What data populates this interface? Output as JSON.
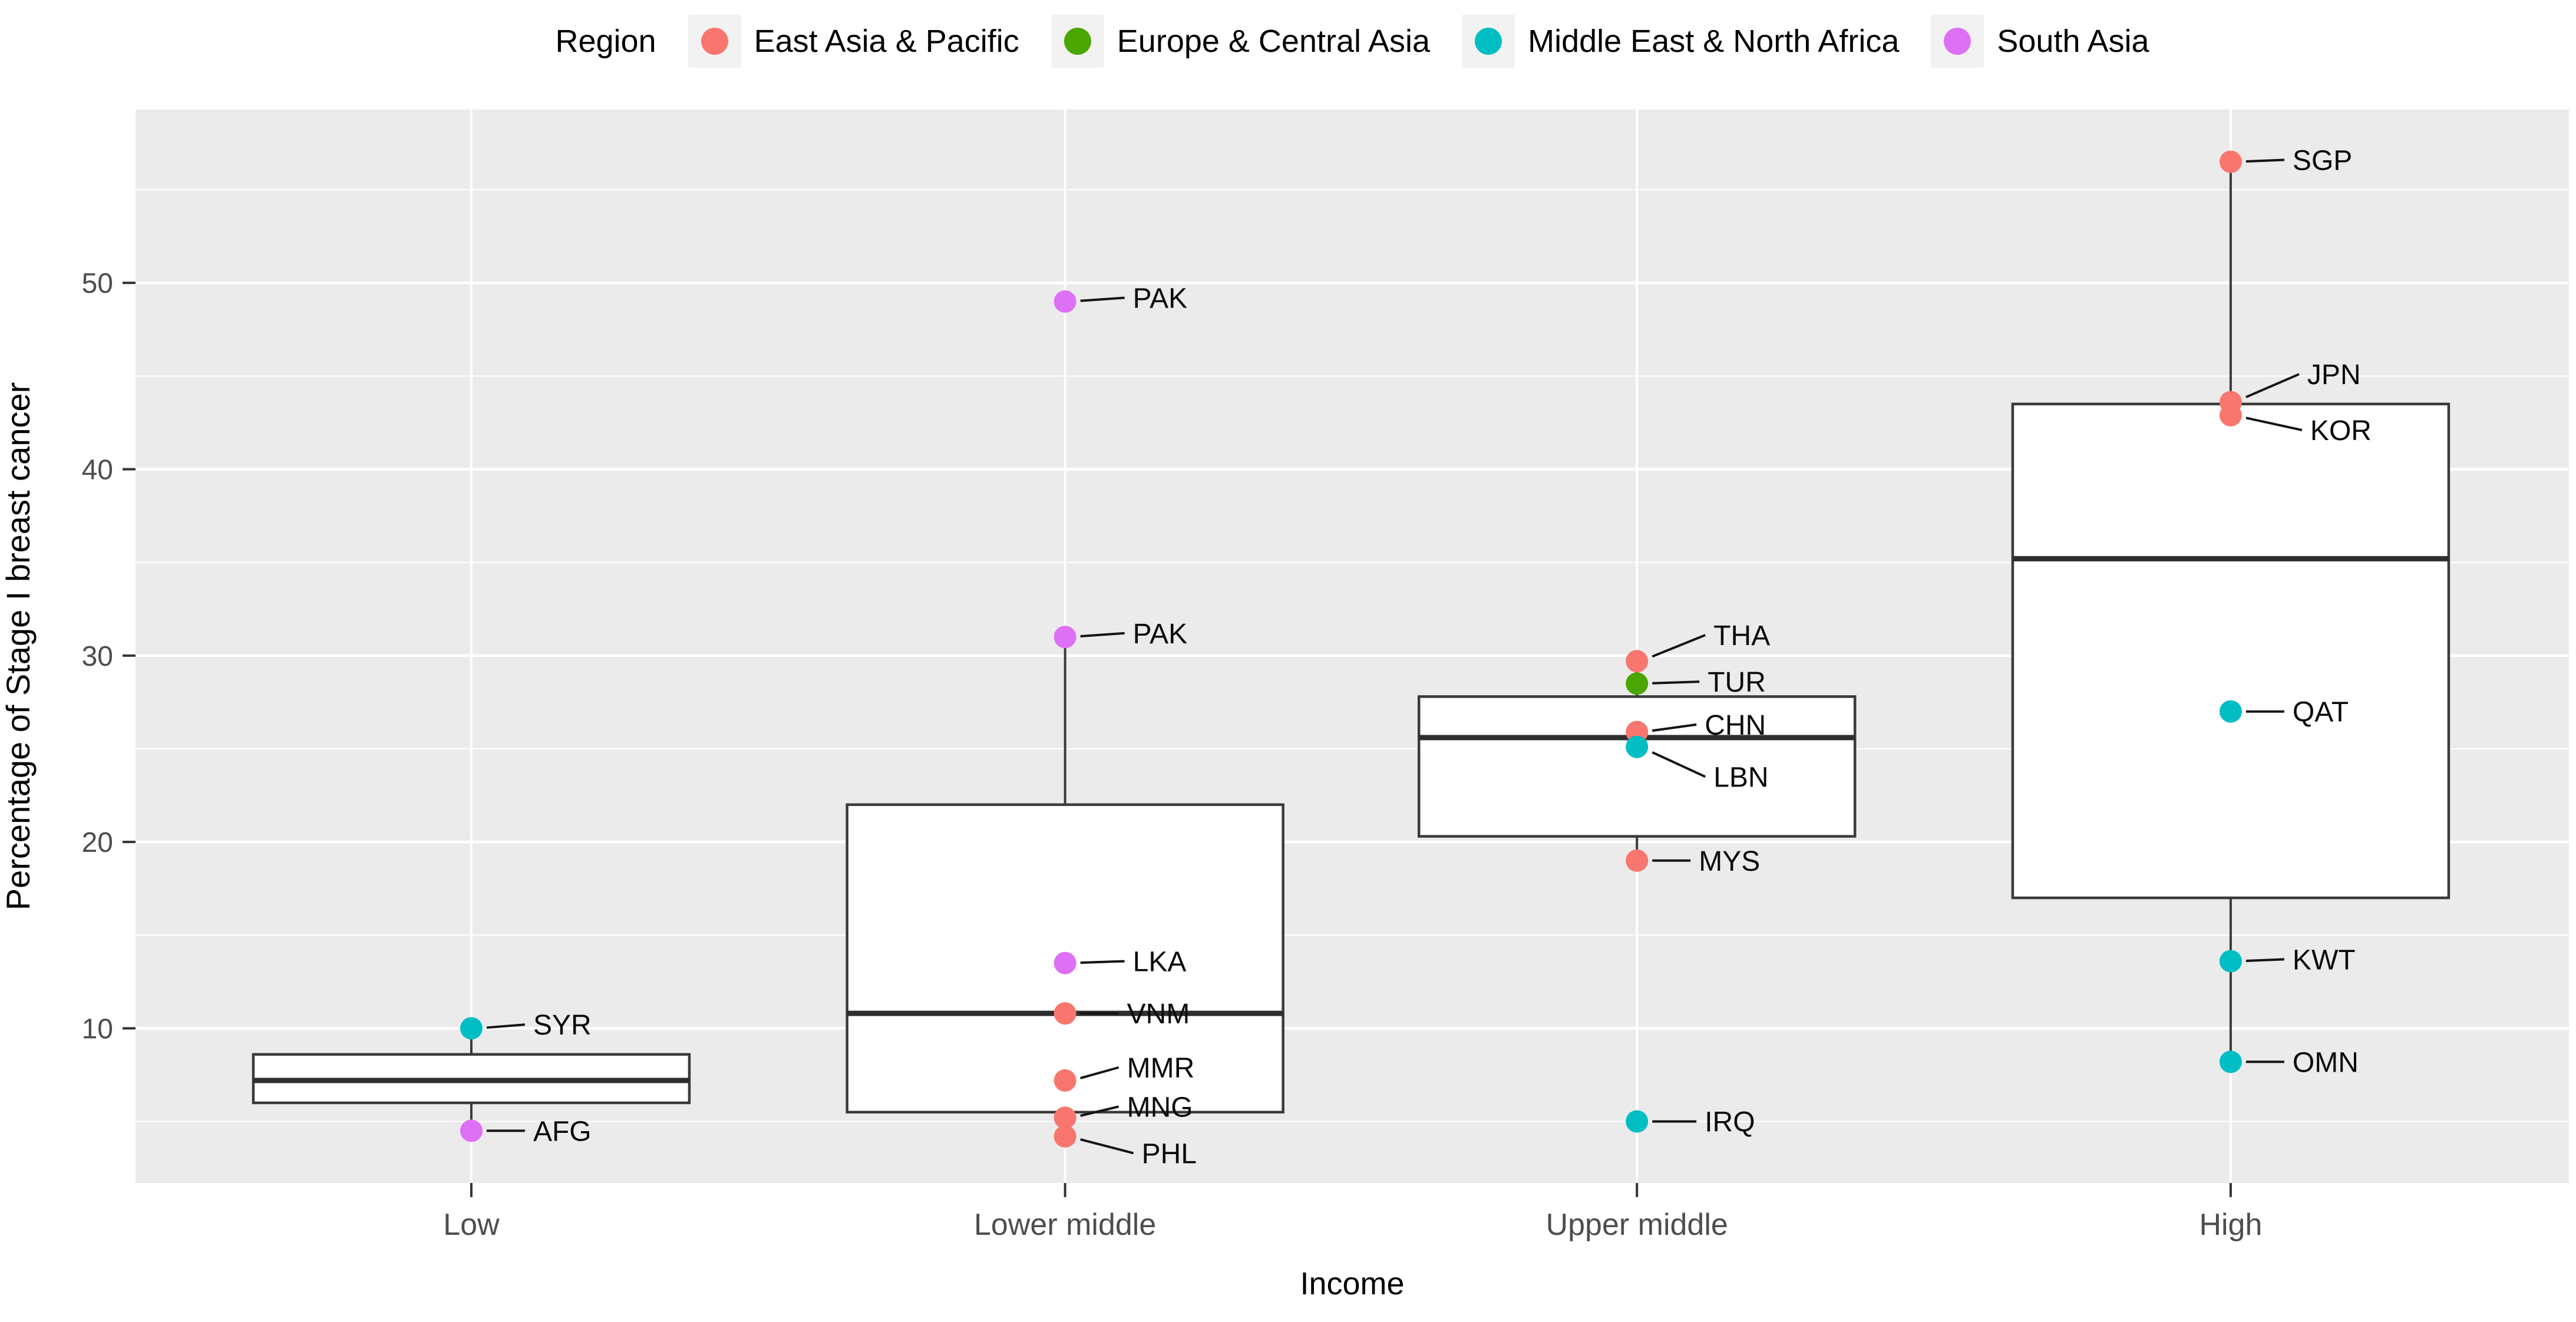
{
  "chart_data": {
    "type": "boxplot",
    "legend_title": "Region",
    "regions": [
      {
        "name": "East Asia & Pacific",
        "color": "#F8766D"
      },
      {
        "name": "Europe & Central Asia",
        "color": "#4CA602"
      },
      {
        "name": "Middle East & North Africa",
        "color": "#00BEC4"
      },
      {
        "name": "South Asia",
        "color": "#DE70F5"
      }
    ],
    "xlabel": "Income",
    "ylabel": "Percentage of Stage I breast cancer",
    "categories": [
      "Low",
      "Lower middle",
      "Upper middle",
      "High"
    ],
    "y_ticks": [
      10,
      20,
      30,
      40,
      50
    ],
    "y_minor_ticks": [
      5,
      15,
      25,
      35,
      45,
      55
    ],
    "ylim": [
      1.7,
      59.3
    ],
    "grid": true,
    "legend_position": "top",
    "groups": [
      {
        "category": "Low",
        "box": {
          "whisker_low": 4.5,
          "q1": 6.0,
          "median": 7.2,
          "q3": 8.6,
          "whisker_high": 10.0
        },
        "points": [
          {
            "label": "SYR",
            "value": 10.0,
            "region": "Middle East & North Africa",
            "label_dx": 105,
            "label_dv": 0.2
          },
          {
            "label": "AFG",
            "value": 4.5,
            "region": "South Asia",
            "label_dx": 105,
            "label_dv": 0.0
          }
        ]
      },
      {
        "category": "Lower middle",
        "box": {
          "whisker_low": 4.2,
          "q1": 5.5,
          "median": 10.8,
          "q3": 22.0,
          "whisker_high": 31.0
        },
        "points": [
          {
            "label": "PAK",
            "value": 49.0,
            "region": "South Asia",
            "label_dx": 115,
            "label_dv": 0.2
          },
          {
            "label": "PAK",
            "value": 31.0,
            "region": "South Asia",
            "label_dx": 115,
            "label_dv": 0.2
          },
          {
            "label": "LKA",
            "value": 13.5,
            "region": "South Asia",
            "label_dx": 115,
            "label_dv": 0.1
          },
          {
            "label": "VNM",
            "value": 10.8,
            "region": "East Asia & Pacific",
            "label_dx": 105,
            "label_dv": 0.0
          },
          {
            "label": "MMR",
            "value": 7.2,
            "region": "East Asia & Pacific",
            "label_dx": 105,
            "label_dv": 0.7
          },
          {
            "label": "MNG",
            "value": 5.2,
            "region": "East Asia & Pacific",
            "label_dx": 105,
            "label_dv": 0.6
          },
          {
            "label": "PHL",
            "value": 4.2,
            "region": "East Asia & Pacific",
            "label_dx": 130,
            "label_dv": -0.9
          }
        ]
      },
      {
        "category": "Upper middle",
        "box": {
          "whisker_low": 19.0,
          "q1": 20.3,
          "median": 25.6,
          "q3": 27.8,
          "whisker_high": 29.7
        },
        "points": [
          {
            "label": "THA",
            "value": 29.7,
            "region": "East Asia & Pacific",
            "label_dx": 130,
            "label_dv": 1.4
          },
          {
            "label": "TUR",
            "value": 28.5,
            "region": "Europe & Central Asia",
            "label_dx": 120,
            "label_dv": 0.1
          },
          {
            "label": "CHN",
            "value": 25.9,
            "region": "East Asia & Pacific",
            "label_dx": 115,
            "label_dv": 0.4
          },
          {
            "label": "LBN",
            "value": 25.1,
            "region": "Middle East & North Africa",
            "label_dx": 130,
            "label_dv": -1.6
          },
          {
            "label": "MYS",
            "value": 19.0,
            "region": "East Asia & Pacific",
            "label_dx": 105,
            "label_dv": 0.0
          },
          {
            "label": "IRQ",
            "value": 5.0,
            "region": "Middle East & North Africa",
            "label_dx": 115,
            "label_dv": 0.0
          }
        ]
      },
      {
        "category": "High",
        "box": {
          "whisker_low": 8.2,
          "q1": 17.0,
          "median": 35.2,
          "q3": 43.5,
          "whisker_high": 56.5
        },
        "points": [
          {
            "label": "SGP",
            "value": 56.5,
            "region": "East Asia & Pacific",
            "label_dx": 105,
            "label_dv": 0.1
          },
          {
            "label": "JPN",
            "value": 43.6,
            "region": "East Asia & Pacific",
            "label_dx": 130,
            "label_dv": 1.5
          },
          {
            "label": "KOR",
            "value": 42.9,
            "region": "East Asia & Pacific",
            "label_dx": 135,
            "label_dv": -0.8
          },
          {
            "label": "QAT",
            "value": 27.0,
            "region": "Middle East & North Africa",
            "label_dx": 105,
            "label_dv": 0.0
          },
          {
            "label": "KWT",
            "value": 13.6,
            "region": "Middle East & North Africa",
            "label_dx": 105,
            "label_dv": 0.1
          },
          {
            "label": "OMN",
            "value": 8.2,
            "region": "Middle East & North Africa",
            "label_dx": 105,
            "label_dv": 0.0
          }
        ]
      }
    ],
    "colors": {
      "panel_background": "#EBEBEB",
      "gridline": "#FFFFFF",
      "box_fill": "#FFFFFF",
      "box_border": "#3A3A3A",
      "median_line": "#2E2E2E",
      "tick_mark": "#333333",
      "tick_label": "#4D4D4D",
      "axis_title": "#000000",
      "point_label": "#0A0A0A",
      "connector": "#141414",
      "legend_key_background": "#F2F2F2"
    }
  }
}
